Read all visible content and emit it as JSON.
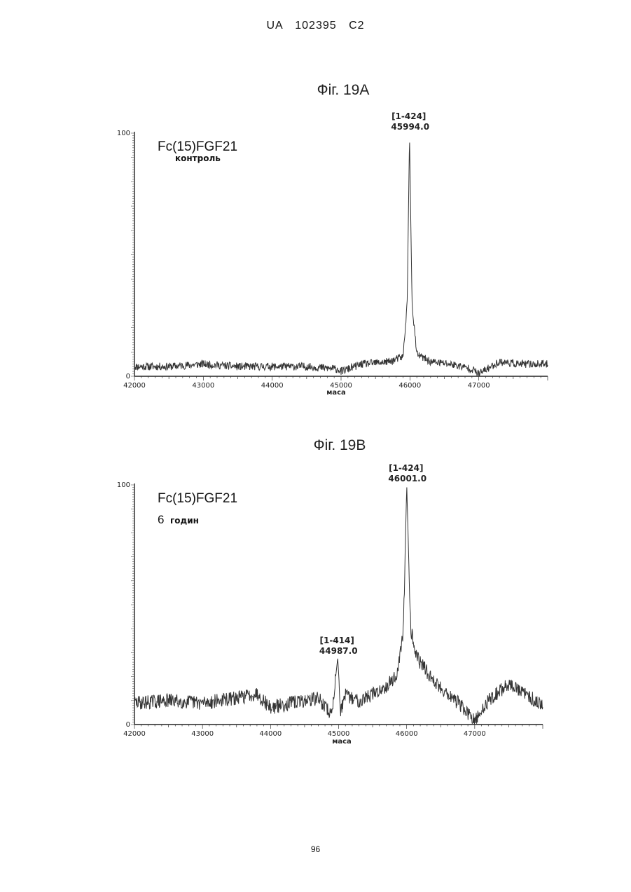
{
  "header": "UA   102395   C2",
  "page_number": "96",
  "chart_data": [
    {
      "type": "line",
      "title": "Фіг. 19А",
      "sample_name": "Fc(15)FGF21",
      "condition": "контроль",
      "xlabel": "маса",
      "xlim": [
        42000,
        48000
      ],
      "ylim": [
        0,
        100
      ],
      "x_ticks": [
        "42000",
        "43000",
        "44000",
        "45000",
        "46000",
        "47000"
      ],
      "y_ticks": [
        "0",
        "100"
      ],
      "peaks": [
        {
          "label": "[1-424]",
          "mass_text": "45994.0",
          "x": 45994,
          "y": 100
        }
      ],
      "series": [
        {
          "x": [
            42000,
            42500,
            43000,
            43500,
            44000,
            44500,
            44950,
            45000,
            45300,
            45700,
            45900,
            45960,
            45994,
            46030,
            46100,
            46300,
            46600,
            46900,
            47000,
            47300,
            47600,
            48000
          ],
          "values": [
            4,
            4,
            5,
            4,
            4,
            4,
            3,
            2,
            5,
            6,
            8,
            30,
            100,
            30,
            9,
            6,
            5,
            3,
            1,
            6,
            5,
            5
          ]
        }
      ]
    },
    {
      "type": "line",
      "title": "Фіг. 19В",
      "sample_name": "Fc(15)FGF21",
      "condition_num": "6",
      "condition": "годин",
      "xlabel": "маса",
      "xlim": [
        42000,
        48000
      ],
      "ylim": [
        0,
        100
      ],
      "x_ticks": [
        "42000",
        "43000",
        "44000",
        "45000",
        "46000",
        "47000"
      ],
      "y_ticks": [
        "0",
        "100"
      ],
      "peaks": [
        {
          "label": "[1-414]",
          "mass_text": "44987.0",
          "x": 44987,
          "y": 28
        },
        {
          "label": "[1-424]",
          "mass_text": "46001.0",
          "x": 46001,
          "y": 100
        }
      ],
      "series": [
        {
          "x": [
            42000,
            42500,
            43000,
            43500,
            43800,
            44000,
            44300,
            44700,
            44900,
            44950,
            44987,
            45030,
            45100,
            45300,
            45600,
            45850,
            45950,
            46001,
            46060,
            46150,
            46400,
            46800,
            47000,
            47200,
            47500,
            48000
          ],
          "values": [
            9,
            10,
            9,
            11,
            13,
            7,
            9,
            11,
            4,
            18,
            28,
            6,
            12,
            10,
            14,
            20,
            38,
            100,
            40,
            28,
            18,
            8,
            1,
            10,
            17,
            8
          ]
        }
      ]
    }
  ]
}
